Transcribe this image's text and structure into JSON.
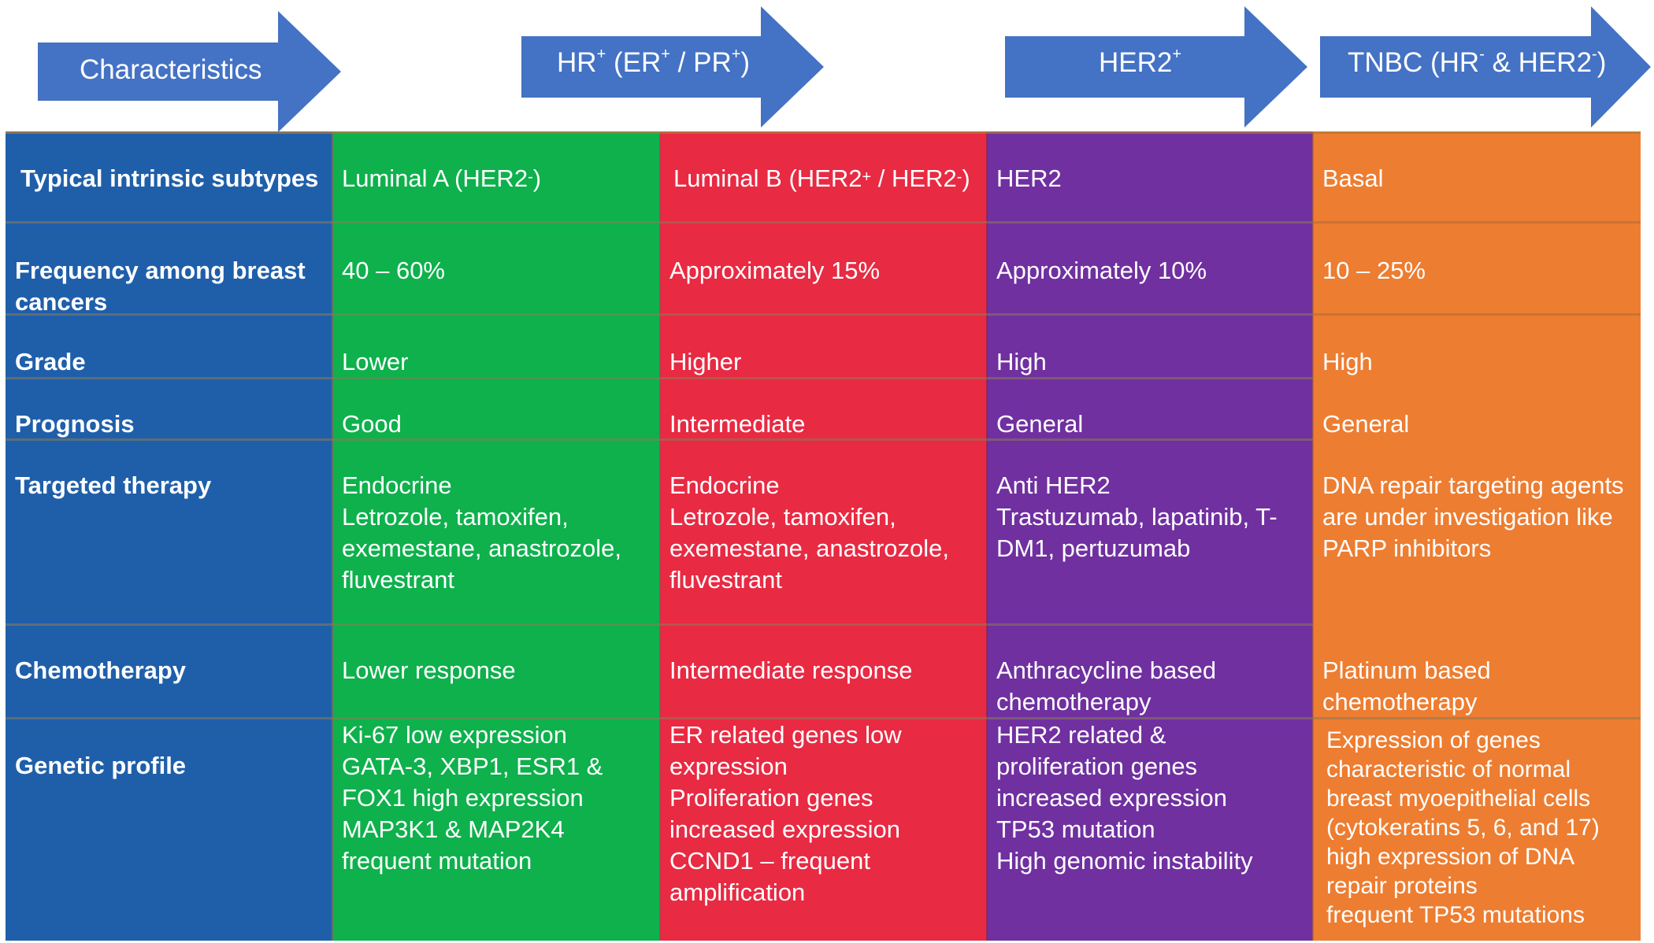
{
  "colors": {
    "arrow": "#4472C4",
    "characteristics": "#1F5FAA",
    "hr_positive": "#0EB14C",
    "luminal_b": "#E82A43",
    "her2": "#7030A0",
    "tnbc": "#ED7D31"
  },
  "headers": {
    "characteristics": "Characteristics",
    "hr": {
      "a": "HR",
      "b": "+",
      "c": " (ER",
      "d": "+",
      "e": " / PR",
      "f": "+",
      "g": ")"
    },
    "her2": {
      "a": "HER2",
      "b": "+"
    },
    "tnbc": {
      "a": "TNBC (HR",
      "b": "-",
      "c": " & HER2",
      "d": "-",
      "e": ")"
    }
  },
  "rows": {
    "subtypes": {
      "label": "Typical intrinsic subtypes",
      "luminal_a": {
        "a": "Luminal A (HER2",
        "b": "-",
        "c": ")"
      },
      "luminal_b": {
        "a": "Luminal B (HER2",
        "b": "+",
        "c": " / HER2",
        "d": "-",
        "e": ")"
      },
      "her2": "HER2",
      "tnbc": "Basal"
    },
    "frequency": {
      "label": [
        "Frequency among breast",
        "cancers"
      ],
      "luminal_a": "40 – 60%",
      "luminal_b": "Approximately 15%",
      "her2": "Approximately 10%",
      "tnbc": "10 – 25%"
    },
    "grade": {
      "label": "Grade",
      "luminal_a": "Lower",
      "luminal_b": "Higher",
      "her2": "High",
      "tnbc": "High"
    },
    "prognosis": {
      "label": "Prognosis",
      "luminal_a": "Good",
      "luminal_b": "Intermediate",
      "her2": "General",
      "tnbc": "General"
    },
    "targeted": {
      "label": "Targeted therapy",
      "luminal_a": [
        "Endocrine",
        "Letrozole, tamoxifen,",
        "exemestane, anastrozole,",
        "fluvestrant"
      ],
      "luminal_b": [
        "Endocrine",
        "Letrozole, tamoxifen,",
        "exemestane, anastrozole,",
        "fluvestrant"
      ],
      "her2": [
        "Anti HER2",
        "Trastuzumab, lapatinib, T-",
        "DM1, pertuzumab"
      ],
      "tnbc": [
        "DNA repair targeting agents",
        "are under investigation like",
        "PARP inhibitors"
      ]
    },
    "chemo": {
      "label": "Chemotherapy",
      "luminal_a": "Lower response",
      "luminal_b": "Intermediate response",
      "her2": [
        "Anthracycline based",
        "chemotherapy"
      ],
      "tnbc": [
        "Platinum based",
        "chemotherapy"
      ]
    },
    "genetic": {
      "label": "Genetic profile",
      "luminal_a": [
        " Ki-67 low expression",
        "GATA-3, XBP1, ESR1 &",
        "FOX1 high expression",
        "MAP3K1 & MAP2K4",
        "frequent mutation"
      ],
      "luminal_b": [
        "ER related genes low",
        "expression",
        "Proliferation genes",
        "increased expression",
        "CCND1 – frequent",
        "amplification"
      ],
      "her2": [
        " HER2 related &",
        "proliferation genes",
        "increased expression",
        "TP53 mutation",
        "High genomic instability"
      ],
      "tnbc": [
        "Expression of genes",
        "characteristic of normal",
        "breast myoepithelial cells",
        "(cytokeratins 5, 6, and 17)",
        "high expression of DNA",
        "repair proteins",
        "frequent TP53 mutations"
      ]
    }
  }
}
